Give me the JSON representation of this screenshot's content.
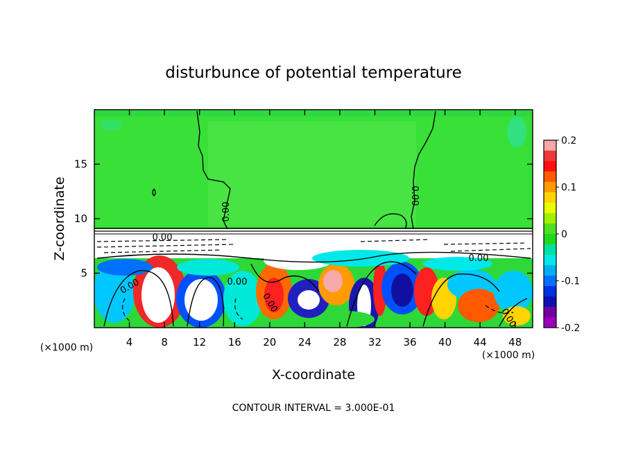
{
  "chart_data": {
    "type": "heatmap",
    "title": "disturbunce of potential temperature",
    "xlabel": "X-coordinate",
    "ylabel": "Z-coordinate",
    "x_unit": "(×1000 m)",
    "x_unit_right": "(×1000 m)",
    "footer": "CONTOUR INTERVAL = 3.000E-01",
    "xlim": [
      0,
      50
    ],
    "ylim": [
      0,
      20
    ],
    "x_ticks": [
      4,
      8,
      12,
      16,
      20,
      24,
      28,
      32,
      36,
      40,
      44,
      48
    ],
    "y_ticks": [
      5,
      10,
      15
    ],
    "contour_labels": [
      "0.00",
      "0.00",
      "0.00",
      "0.00",
      "0.00",
      "0.00",
      "0.00",
      "0.00"
    ],
    "colorbar": {
      "min": -0.2,
      "max": 0.2,
      "tick_labels": [
        "0.2",
        "0.1",
        "0",
        "-0.1",
        "-0.2"
      ],
      "tick_values": [
        0.2,
        0.1,
        0,
        -0.1,
        -0.2
      ],
      "colors": [
        "#f7a8a8",
        "#f03838",
        "#ff1010",
        "#ff5a00",
        "#ff9a00",
        "#ffd400",
        "#e8ff00",
        "#a0f000",
        "#50e020",
        "#1ed81e",
        "#00e0a0",
        "#00e8e8",
        "#00b0f0",
        "#0070ff",
        "#0030e0",
        "#1010b0",
        "#7000a0",
        "#9a00b8"
      ]
    },
    "field_regions": [
      {
        "region": "upper layer",
        "x": [
          0,
          50
        ],
        "z": [
          9,
          20
        ],
        "value": 0.0
      },
      {
        "region": "lower layer",
        "x": [
          0,
          50
        ],
        "z": [
          0,
          9
        ],
        "value_range": [
          -0.2,
          0.2
        ]
      }
    ],
    "grid": false
  }
}
